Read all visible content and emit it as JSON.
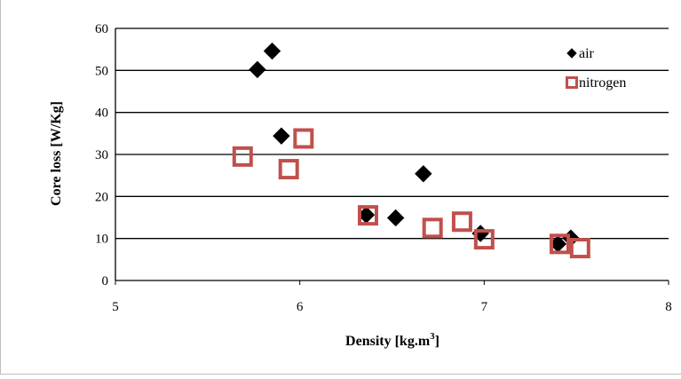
{
  "chart_data": {
    "type": "scatter",
    "title": "",
    "xlabel": "Density [kg.m",
    "xlabel_sup": "3",
    "xlabel_close": "]",
    "ylabel": "Core loss [W/Kg]",
    "xlim": [
      5,
      8
    ],
    "ylim": [
      0,
      60
    ],
    "x_ticks": [
      "5",
      "6",
      "7",
      "8"
    ],
    "y_ticks": [
      "0",
      "10",
      "20",
      "30",
      "40",
      "50",
      "60"
    ],
    "grid": "horizontal",
    "legend_position": "top-right",
    "series": [
      {
        "name": "air",
        "marker": "diamond",
        "color": "#000000",
        "points": [
          {
            "x": 5.77,
            "y": 50.2
          },
          {
            "x": 5.85,
            "y": 54.6
          },
          {
            "x": 5.9,
            "y": 34.4
          },
          {
            "x": 6.36,
            "y": 15.6
          },
          {
            "x": 6.52,
            "y": 14.9
          },
          {
            "x": 6.67,
            "y": 25.4
          },
          {
            "x": 6.98,
            "y": 11.2
          },
          {
            "x": 7.4,
            "y": 8.7
          },
          {
            "x": 7.47,
            "y": 10.1
          }
        ]
      },
      {
        "name": "nitrogen",
        "marker": "square-open",
        "color": "#c0504d",
        "points": [
          {
            "x": 5.69,
            "y": 29.5
          },
          {
            "x": 5.94,
            "y": 26.5
          },
          {
            "x": 6.02,
            "y": 33.8
          },
          {
            "x": 6.37,
            "y": 15.5
          },
          {
            "x": 6.72,
            "y": 12.5
          },
          {
            "x": 6.88,
            "y": 14.0
          },
          {
            "x": 7.0,
            "y": 9.8
          },
          {
            "x": 7.41,
            "y": 8.7
          },
          {
            "x": 7.52,
            "y": 7.7
          }
        ]
      }
    ]
  }
}
